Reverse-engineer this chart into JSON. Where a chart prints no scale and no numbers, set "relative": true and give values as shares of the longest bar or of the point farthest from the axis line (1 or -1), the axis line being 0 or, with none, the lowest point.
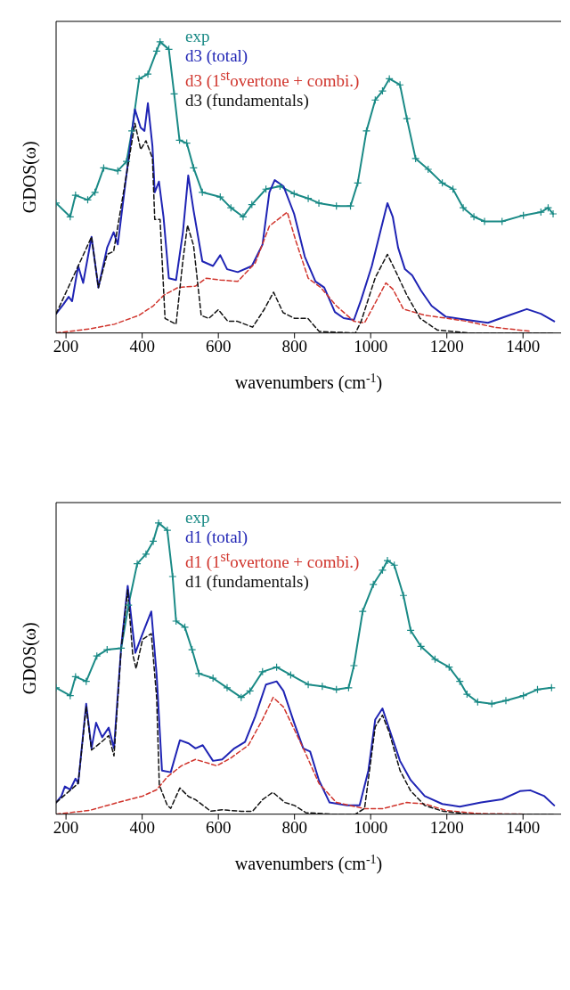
{
  "chart_data": [
    {
      "type": "line",
      "relative": true,
      "xlabel": "wavenumbers (cm$^{-1}$)",
      "ylabel": "GDOS(ω)",
      "xlim": [
        174,
        1500
      ],
      "xticks": [
        200,
        400,
        600,
        800,
        1000,
        1200,
        1400
      ],
      "legend": "top",
      "series": [
        {
          "name": "exp",
          "color": "#1a8a86",
          "marker": "cross",
          "line_style": "solid",
          "x": [
            174,
            211,
            225,
            257,
            276,
            299,
            336,
            359,
            373,
            392,
            415,
            438,
            447,
            470,
            484,
            498,
            517,
            535,
            558,
            605,
            633,
            665,
            688,
            725,
            762,
            799,
            836,
            864,
            910,
            947,
            966,
            989,
            1012,
            1031,
            1049,
            1077,
            1095,
            1118,
            1151,
            1188,
            1216,
            1243,
            1271,
            1299,
            1345,
            1401,
            1447,
            1466,
            1479
          ],
          "values": [
            0.446,
            0.399,
            0.473,
            0.457,
            0.483,
            0.567,
            0.557,
            0.589,
            0.694,
            0.873,
            0.889,
            0.968,
            1.0,
            0.974,
            0.821,
            0.662,
            0.652,
            0.567,
            0.483,
            0.467,
            0.43,
            0.399,
            0.441,
            0.494,
            0.504,
            0.478,
            0.462,
            0.446,
            0.436,
            0.436,
            0.515,
            0.694,
            0.8,
            0.831,
            0.873,
            0.852,
            0.736,
            0.599,
            0.562,
            0.515,
            0.494,
            0.43,
            0.399,
            0.383,
            0.383,
            0.404,
            0.415,
            0.43,
            0.409
          ]
        },
        {
          "name": "d3 (total)",
          "color": "#1f24b4",
          "marker": "none",
          "line_style": "solid",
          "x": [
            174,
            193,
            207,
            216,
            232,
            245,
            267,
            285,
            308,
            325,
            336,
            359,
            381,
            396,
            406,
            415,
            427,
            433,
            444,
            456,
            470,
            489,
            507,
            521,
            535,
            558,
            586,
            605,
            623,
            651,
            688,
            716,
            734,
            748,
            771,
            799,
            827,
            855,
            878,
            906,
            929,
            956,
            975,
            1003,
            1031,
            1044,
            1058,
            1072,
            1090,
            1109,
            1132,
            1160,
            1197,
            1253,
            1308,
            1364,
            1410,
            1447,
            1482
          ],
          "values": [
            0.066,
            0.098,
            0.124,
            0.109,
            0.23,
            0.172,
            0.33,
            0.156,
            0.293,
            0.346,
            0.304,
            0.546,
            0.768,
            0.705,
            0.694,
            0.789,
            0.641,
            0.483,
            0.52,
            0.399,
            0.188,
            0.182,
            0.346,
            0.541,
            0.42,
            0.246,
            0.23,
            0.267,
            0.219,
            0.209,
            0.23,
            0.304,
            0.483,
            0.525,
            0.504,
            0.409,
            0.262,
            0.177,
            0.156,
            0.072,
            0.051,
            0.045,
            0.114,
            0.23,
            0.378,
            0.446,
            0.399,
            0.293,
            0.219,
            0.198,
            0.146,
            0.093,
            0.056,
            0.045,
            0.035,
            0.061,
            0.082,
            0.066,
            0.04
          ]
        },
        {
          "name": "d3 (1$^{st}$overtone + combi.)",
          "color": "#d0342c",
          "marker": "none",
          "line_style": "dashed",
          "x": [
            174,
            262,
            327,
            392,
            429,
            457,
            494,
            540,
            568,
            605,
            651,
            697,
            734,
            781,
            804,
            836,
            869,
            910,
            956,
            984,
            1012,
            1040,
            1058,
            1086,
            1142,
            1197,
            1253,
            1327,
            1419
          ],
          "values": [
            0.0,
            0.014,
            0.03,
            0.061,
            0.093,
            0.13,
            0.156,
            0.161,
            0.188,
            0.182,
            0.177,
            0.241,
            0.367,
            0.415,
            0.314,
            0.188,
            0.156,
            0.093,
            0.04,
            0.035,
            0.103,
            0.172,
            0.151,
            0.082,
            0.061,
            0.051,
            0.04,
            0.019,
            0.006
          ]
        },
        {
          "name": "d3 (fundamentals)",
          "color": "#111111",
          "marker": "none",
          "line_style": "dashed",
          "x": [
            174,
            232,
            267,
            285,
            308,
            325,
            359,
            381,
            396,
            410,
            427,
            433,
            447,
            460,
            489,
            507,
            519,
            535,
            555,
            575,
            600,
            625,
            650,
            670,
            690,
            720,
            745,
            770,
            800,
            835,
            865,
            960,
            975,
            1012,
            1044,
            1070,
            1095,
            1130,
            1175,
            1260,
            1480
          ],
          "values": [
            0.066,
            0.23,
            0.33,
            0.156,
            0.27,
            0.28,
            0.546,
            0.72,
            0.63,
            0.66,
            0.6,
            0.39,
            0.39,
            0.05,
            0.03,
            0.25,
            0.37,
            0.3,
            0.06,
            0.05,
            0.08,
            0.04,
            0.04,
            0.03,
            0.02,
            0.08,
            0.14,
            0.07,
            0.05,
            0.05,
            0.005,
            0,
            0.04,
            0.19,
            0.27,
            0.2,
            0.13,
            0.05,
            0.01,
            0,
            0
          ]
        }
      ]
    },
    {
      "type": "line",
      "relative": true,
      "xlabel": "wavenumbers (cm$^{-1}$)",
      "ylabel": "GDOS(ω)",
      "xlim": [
        174,
        1500
      ],
      "xticks": [
        200,
        400,
        600,
        800,
        1000,
        1200,
        1400
      ],
      "legend": "top",
      "series": [
        {
          "name": "exp",
          "color": "#1a8a86",
          "marker": "cross",
          "line_style": "solid",
          "x": [
            174,
            211,
            225,
            253,
            281,
            308,
            345,
            364,
            387,
            410,
            429,
            443,
            466,
            480,
            489,
            512,
            531,
            549,
            586,
            623,
            660,
            683,
            716,
            753,
            790,
            836,
            873,
            910,
            942,
            956,
            979,
            1007,
            1031,
            1044,
            1062,
            1086,
            1105,
            1132,
            1169,
            1206,
            1234,
            1253,
            1281,
            1318,
            1355,
            1401,
            1438,
            1475
          ],
          "values": [
            0.434,
            0.407,
            0.472,
            0.456,
            0.543,
            0.565,
            0.57,
            0.718,
            0.86,
            0.893,
            0.937,
            1.0,
            0.975,
            0.816,
            0.663,
            0.642,
            0.565,
            0.483,
            0.467,
            0.434,
            0.401,
            0.423,
            0.489,
            0.505,
            0.478,
            0.445,
            0.439,
            0.428,
            0.434,
            0.51,
            0.696,
            0.789,
            0.838,
            0.871,
            0.855,
            0.751,
            0.631,
            0.576,
            0.532,
            0.505,
            0.456,
            0.412,
            0.385,
            0.379,
            0.39,
            0.407,
            0.428,
            0.434
          ]
        },
        {
          "name": "d1 (total)",
          "color": "#1f24b4",
          "marker": "none",
          "line_style": "solid",
          "x": [
            174,
            188,
            197,
            211,
            225,
            232,
            253,
            267,
            279,
            295,
            312,
            326,
            345,
            362,
            375,
            382,
            401,
            424,
            438,
            452,
            475,
            499,
            522,
            540,
            559,
            586,
            610,
            642,
            670,
            697,
            725,
            753,
            771,
            799,
            823,
            841,
            864,
            892,
            938,
            971,
            994,
            1012,
            1031,
            1049,
            1077,
            1105,
            1142,
            1188,
            1234,
            1290,
            1345,
            1392,
            1419,
            1456,
            1482
          ],
          "values": [
            0.04,
            0.062,
            0.095,
            0.084,
            0.122,
            0.106,
            0.379,
            0.226,
            0.314,
            0.264,
            0.297,
            0.226,
            0.576,
            0.784,
            0.631,
            0.554,
            0.62,
            0.696,
            0.478,
            0.15,
            0.144,
            0.254,
            0.243,
            0.226,
            0.237,
            0.183,
            0.188,
            0.226,
            0.248,
            0.336,
            0.445,
            0.456,
            0.423,
            0.314,
            0.226,
            0.215,
            0.117,
            0.04,
            0.03,
            0.03,
            0.15,
            0.325,
            0.363,
            0.292,
            0.183,
            0.117,
            0.062,
            0.035,
            0.026,
            0.04,
            0.051,
            0.079,
            0.082,
            0.062,
            0.03
          ]
        },
        {
          "name": "d1 (1$^{st}$overtone + combi.)",
          "color": "#d0342c",
          "marker": "none",
          "line_style": "dashed",
          "x": [
            174,
            262,
            336,
            401,
            438,
            466,
            503,
            540,
            596,
            633,
            679,
            716,
            744,
            771,
            799,
            827,
            864,
            910,
            984,
            1031,
            1095,
            1142,
            1197,
            1281,
            1401
          ],
          "values": [
            0.0,
            0.013,
            0.04,
            0.062,
            0.084,
            0.128,
            0.166,
            0.188,
            0.166,
            0.193,
            0.237,
            0.325,
            0.401,
            0.368,
            0.292,
            0.215,
            0.106,
            0.04,
            0.019,
            0.019,
            0.04,
            0.035,
            0.013,
            0.002,
            0
          ]
        },
        {
          "name": "d1 (fundamentals)",
          "color": "#111111",
          "marker": "none",
          "line_style": "dashed",
          "x": [
            174,
            232,
            253,
            267,
            295,
            312,
            326,
            345,
            362,
            375,
            384,
            401,
            424,
            438,
            445,
            466,
            475,
            499,
            522,
            540,
            580,
            610,
            660,
            690,
            716,
            743,
            775,
            800,
            830,
            900,
            960,
            984,
            1012,
            1031,
            1049,
            1077,
            1105,
            1142,
            1190,
            1260,
            1480
          ],
          "values": [
            0.04,
            0.106,
            0.37,
            0.22,
            0.25,
            0.27,
            0.2,
            0.57,
            0.77,
            0.55,
            0.5,
            0.6,
            0.62,
            0.4,
            0.1,
            0.03,
            0.02,
            0.09,
            0.06,
            0.05,
            0.01,
            0.015,
            0.01,
            0.01,
            0.05,
            0.075,
            0.04,
            0.03,
            0.005,
            0,
            0,
            0.02,
            0.3,
            0.34,
            0.28,
            0.15,
            0.08,
            0.03,
            0.01,
            0,
            0
          ]
        }
      ]
    }
  ]
}
